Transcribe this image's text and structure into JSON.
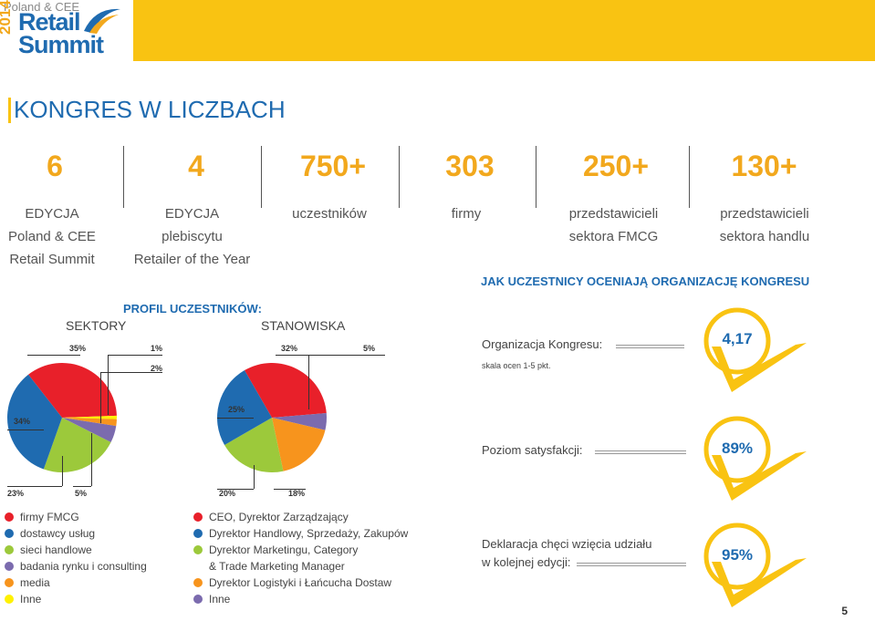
{
  "logo": {
    "line1": "Poland & CEE",
    "year": "2014",
    "word1": "Retail",
    "word2": "Summit"
  },
  "title": "KONGRES W LICZBACH",
  "stats": [
    {
      "value": "6",
      "lines": [
        "EDYCJA",
        "Poland & CEE",
        "Retail Summit"
      ]
    },
    {
      "value": "4",
      "lines": [
        "EDYCJA",
        "plebiscytu",
        "Retailer of the Year"
      ]
    },
    {
      "value": "750+",
      "lines": [
        "uczestników"
      ]
    },
    {
      "value": "303",
      "lines": [
        "firmy"
      ]
    },
    {
      "value": "250+",
      "lines": [
        "przedstawicieli",
        "sektora FMCG"
      ]
    },
    {
      "value": "130+",
      "lines": [
        "przedstawicieli",
        "sektora handlu"
      ]
    }
  ],
  "profile": {
    "title": "PROFIL UCZESTNIKÓW:",
    "sectors_label": "SEKTORY",
    "positions_label": "STANOWISKA"
  },
  "colors": {
    "red": "#e8202a",
    "blue": "#1f6bb0",
    "green": "#9cc93b",
    "purple": "#7b6bae",
    "orange": "#f7941d",
    "yellow": "#f9c312",
    "accent": "#f2a81d"
  },
  "chart_data": [
    {
      "type": "pie",
      "title": "SEKTORY",
      "series": [
        {
          "name": "firmy FMCG",
          "value": 35,
          "label": "35%",
          "color": "#e8202a"
        },
        {
          "name": "Inne",
          "value": 1,
          "label": "1%",
          "color": "#fff100"
        },
        {
          "name": "media",
          "value": 2,
          "label": "2%",
          "color": "#f7941d"
        },
        {
          "name": "badania rynku i consulting",
          "value": 5,
          "label": "5%",
          "color": "#7b6bae"
        },
        {
          "name": "sieci handlowe",
          "value": 23,
          "label": "23%",
          "color": "#9cc93b"
        },
        {
          "name": "dostawcy usług",
          "value": 34,
          "label": "34%",
          "color": "#1f6bb0"
        }
      ]
    },
    {
      "type": "pie",
      "title": "STANOWISKA",
      "series": [
        {
          "name": "CEO, Dyrektor Zarządzający",
          "value": 32,
          "label": "32%",
          "color": "#e8202a"
        },
        {
          "name": "Inne",
          "value": 5,
          "label": "5%",
          "color": "#7b6bae"
        },
        {
          "name": "Dyrektor Logistyki i Łańcucha Dostaw",
          "value": 18,
          "label": "18%",
          "color": "#f7941d"
        },
        {
          "name": "Dyrektor Marketingu, Category & Trade Marketing Manager",
          "value": 20,
          "label": "20%",
          "color": "#9cc93b"
        },
        {
          "name": "Dyrektor Handlowy, Sprzedaży, Zakupów",
          "value": 25,
          "label": "25%",
          "color": "#1f6bb0"
        }
      ]
    }
  ],
  "legend_sectors": [
    {
      "label": "firmy FMCG",
      "color": "#e8202a"
    },
    {
      "label": "dostawcy usług",
      "color": "#1f6bb0"
    },
    {
      "label": "sieci handlowe",
      "color": "#9cc93b"
    },
    {
      "label": "badania rynku i consulting",
      "color": "#7b6bae"
    },
    {
      "label": "media",
      "color": "#f7941d"
    },
    {
      "label": "Inne",
      "color": "#fff100"
    }
  ],
  "legend_positions": [
    {
      "label": "CEO, Dyrektor Zarządzający",
      "color": "#e8202a"
    },
    {
      "label": "Dyrektor Handlowy, Sprzedaży, Zakupów",
      "color": "#1f6bb0"
    },
    {
      "label": "Dyrektor Marketingu, Category",
      "color": "#9cc93b"
    },
    {
      "label": "& Trade Marketing Manager",
      "color": ""
    },
    {
      "label": "Dyrektor Logistyki i Łańcucha Dostaw",
      "color": "#f7941d"
    },
    {
      "label": "Inne",
      "color": "#7b6bae"
    }
  ],
  "ratings": {
    "title": "JAK UCZESTNICY OCENIAJĄ ORGANIZACJĘ KONGRESU",
    "org_label": "Organizacja Kongresu:",
    "scale_note": "skala ocen 1-5 pkt.",
    "org_score": "4,17",
    "satisfaction_label": "Poziom satysfakcji:",
    "satisfaction_score": "89%",
    "declaration_line1": "Deklaracja chęci wzięcia udziału",
    "declaration_line2": "w kolejnej edycji:",
    "declaration_score": "95%"
  },
  "page_number": "5"
}
